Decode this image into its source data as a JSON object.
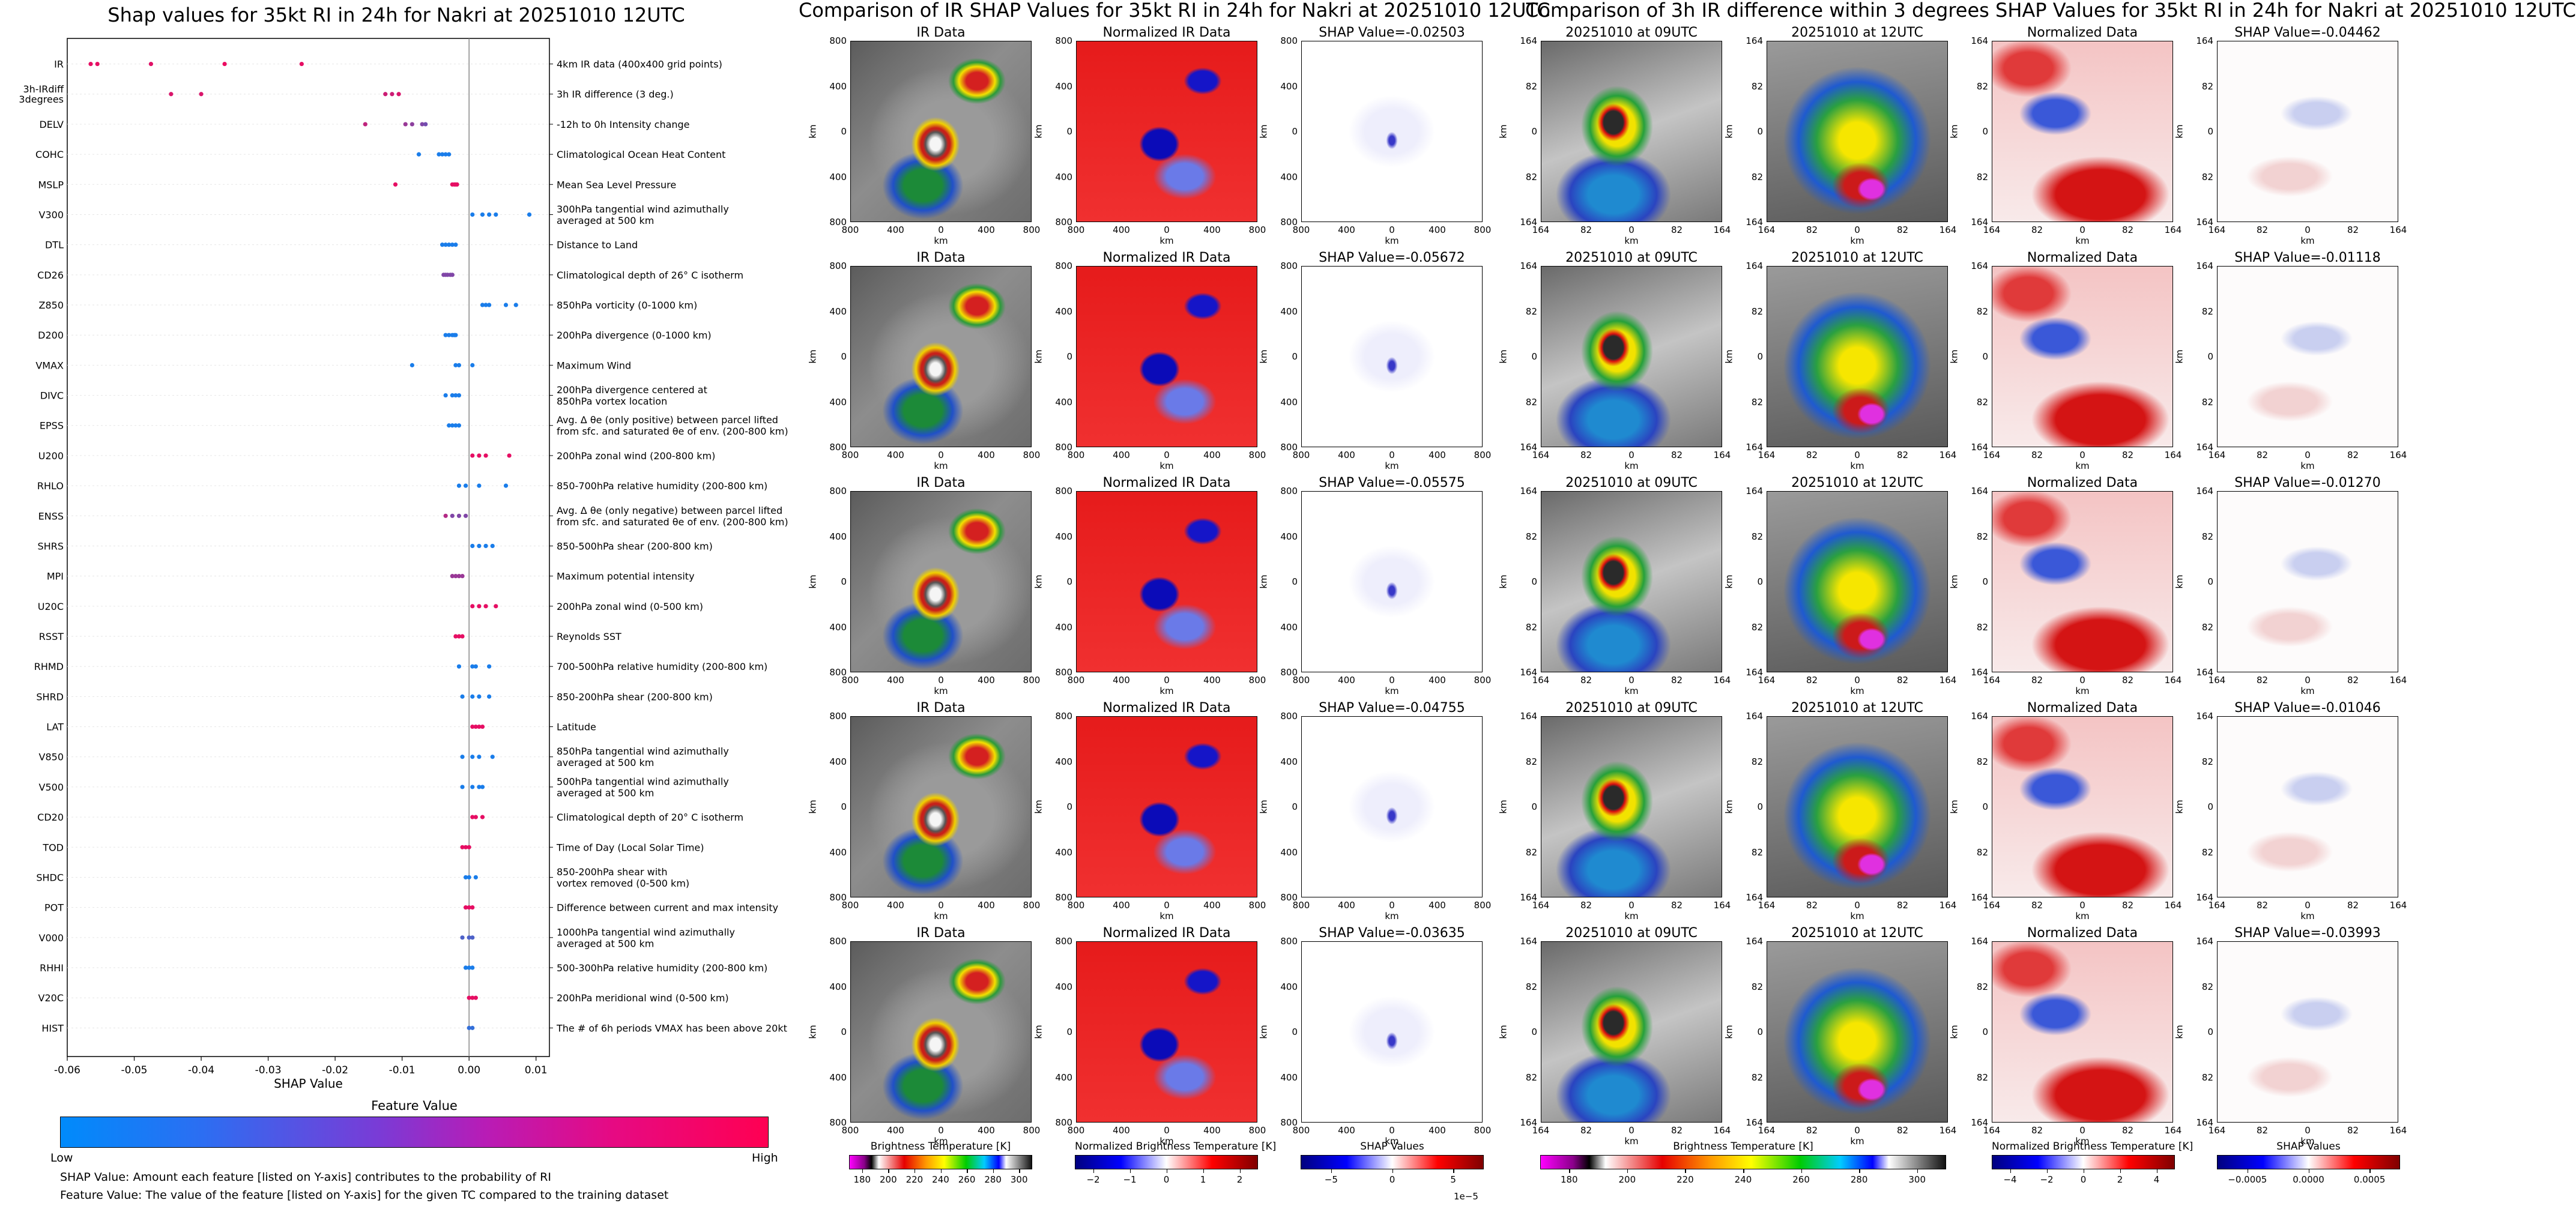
{
  "left_title": "Shap values for 35kt RI in 24h for Nakri at 20251010 12UTC",
  "middle_title": "Comparison of IR SHAP Values for 35kt RI in 24h for Nakri at 20251010 12UTC",
  "right_title": "Comparison of 3h IR difference within 3 degrees SHAP Values for 35kt RI in 24h for Nakri at 20251010 12UTC",
  "chart_data": [
    {
      "type": "scatter",
      "title": "Shap values for 35kt RI in 24h for Nakri at 20251010 12UTC",
      "xlabel": "SHAP Value",
      "xlim": [
        -0.06,
        0.012
      ],
      "xticks": [
        "-0.06",
        "-0.05",
        "-0.04",
        "-0.03",
        "-0.02",
        "-0.01",
        "0.00",
        "0.01"
      ],
      "features": [
        {
          "code": "IR",
          "desc": "4km IR data (400x400 grid points)",
          "points": [
            [
              -0.0565,
              0.9
            ],
            [
              -0.0555,
              0.9
            ],
            [
              -0.0475,
              0.88
            ],
            [
              -0.0365,
              0.92
            ],
            [
              -0.025,
              0.9
            ]
          ]
        },
        {
          "code": "3h-IRdiff\n3degrees",
          "desc": "3h IR difference (3 deg.)",
          "points": [
            [
              -0.0445,
              0.85
            ],
            [
              -0.04,
              0.85
            ],
            [
              -0.0125,
              0.8
            ],
            [
              -0.0115,
              0.8
            ],
            [
              -0.0105,
              0.85
            ]
          ]
        },
        {
          "code": "DELV",
          "desc": "-12h to 0h Intensity change",
          "points": [
            [
              -0.0155,
              0.75
            ],
            [
              -0.0095,
              0.6
            ],
            [
              -0.0085,
              0.55
            ],
            [
              -0.007,
              0.5
            ],
            [
              -0.0065,
              0.45
            ]
          ]
        },
        {
          "code": "COHC",
          "desc": "Climatological Ocean Heat Content",
          "points": [
            [
              -0.0075,
              0.1
            ],
            [
              -0.0045,
              0.1
            ],
            [
              -0.004,
              0.1
            ],
            [
              -0.0035,
              0.1
            ],
            [
              -0.003,
              0.1
            ]
          ]
        },
        {
          "code": "MSLP",
          "desc": "Mean Sea Level Pressure",
          "points": [
            [
              -0.011,
              0.9
            ],
            [
              -0.0025,
              0.9
            ],
            [
              -0.0022,
              0.9
            ],
            [
              -0.002,
              0.9
            ],
            [
              -0.0018,
              0.9
            ]
          ]
        },
        {
          "code": "V300",
          "desc": "300hPa tangential wind azimuthally\naveraged at 500 km",
          "points": [
            [
              0.0005,
              0.1
            ],
            [
              0.002,
              0.1
            ],
            [
              0.003,
              0.1
            ],
            [
              0.004,
              0.1
            ],
            [
              0.009,
              0.1
            ]
          ]
        },
        {
          "code": "DTL",
          "desc": "Distance to Land",
          "points": [
            [
              -0.004,
              0.1
            ],
            [
              -0.0035,
              0.1
            ],
            [
              -0.003,
              0.1
            ],
            [
              -0.0025,
              0.1
            ],
            [
              -0.002,
              0.1
            ]
          ]
        },
        {
          "code": "CD26",
          "desc": "Climatological depth of 26° C isotherm",
          "points": [
            [
              -0.0038,
              0.5
            ],
            [
              -0.0035,
              0.5
            ],
            [
              -0.0032,
              0.5
            ],
            [
              -0.0028,
              0.5
            ],
            [
              -0.0025,
              0.5
            ]
          ]
        },
        {
          "code": "Z850",
          "desc": "850hPa vorticity (0-1000 km)",
          "points": [
            [
              0.002,
              0.1
            ],
            [
              0.0025,
              0.1
            ],
            [
              0.003,
              0.1
            ],
            [
              0.0055,
              0.1
            ],
            [
              0.007,
              0.1
            ]
          ]
        },
        {
          "code": "D200",
          "desc": "200hPa divergence (0-1000 km)",
          "points": [
            [
              -0.0035,
              0.1
            ],
            [
              -0.003,
              0.1
            ],
            [
              -0.0025,
              0.1
            ],
            [
              -0.0022,
              0.1
            ],
            [
              -0.002,
              0.1
            ]
          ]
        },
        {
          "code": "VMAX",
          "desc": "Maximum Wind",
          "points": [
            [
              -0.0085,
              0.1
            ],
            [
              -0.002,
              0.1
            ],
            [
              -0.0015,
              0.1
            ],
            [
              0.0005,
              0.1
            ]
          ]
        },
        {
          "code": "DIVC",
          "desc": "200hPa divergence centered at\n850hPa vortex location",
          "points": [
            [
              -0.0035,
              0.1
            ],
            [
              -0.0025,
              0.1
            ],
            [
              -0.002,
              0.1
            ],
            [
              -0.0015,
              0.1
            ]
          ]
        },
        {
          "code": "EPSS",
          "desc": "Avg. Δ θe (only positive) between parcel lifted\nfrom sfc. and saturated θe of env. (200-800 km)",
          "points": [
            [
              -0.003,
              0.1
            ],
            [
              -0.0025,
              0.1
            ],
            [
              -0.002,
              0.1
            ],
            [
              -0.0015,
              0.1
            ]
          ]
        },
        {
          "code": "U200",
          "desc": "200hPa zonal wind (200-800 km)",
          "points": [
            [
              0.0005,
              0.9
            ],
            [
              0.0015,
              0.9
            ],
            [
              0.0025,
              0.9
            ],
            [
              0.006,
              0.9
            ]
          ]
        },
        {
          "code": "RHLO",
          "desc": "850-700hPa relative humidity (200-800 km)",
          "points": [
            [
              -0.0015,
              0.1
            ],
            [
              -0.0005,
              0.1
            ],
            [
              0.0015,
              0.1
            ],
            [
              0.0055,
              0.1
            ]
          ]
        },
        {
          "code": "ENSS",
          "desc": "Avg. Δ θe (only negative) between parcel lifted\nfrom sfc. and saturated θe of env. (200-800 km)",
          "points": [
            [
              -0.0035,
              0.7
            ],
            [
              -0.0025,
              0.5
            ],
            [
              -0.0015,
              0.5
            ],
            [
              -0.0005,
              0.5
            ]
          ]
        },
        {
          "code": "SHRS",
          "desc": "850-500hPa shear (200-800 km)",
          "points": [
            [
              0.0005,
              0.1
            ],
            [
              0.0015,
              0.1
            ],
            [
              0.0025,
              0.1
            ],
            [
              0.0035,
              0.1
            ]
          ]
        },
        {
          "code": "MPI",
          "desc": "Maximum potential intensity",
          "points": [
            [
              -0.0025,
              0.6
            ],
            [
              -0.002,
              0.6
            ],
            [
              -0.0015,
              0.6
            ],
            [
              -0.001,
              0.6
            ]
          ]
        },
        {
          "code": "U20C",
          "desc": "200hPa zonal wind (0-500 km)",
          "points": [
            [
              0.0005,
              0.9
            ],
            [
              0.0015,
              0.9
            ],
            [
              0.0025,
              0.9
            ],
            [
              0.004,
              0.9
            ]
          ]
        },
        {
          "code": "RSST",
          "desc": "Reynolds SST",
          "points": [
            [
              -0.002,
              0.9
            ],
            [
              -0.0015,
              0.9
            ],
            [
              -0.001,
              0.9
            ]
          ]
        },
        {
          "code": "RHMD",
          "desc": "700-500hPa relative humidity (200-800 km)",
          "points": [
            [
              -0.0015,
              0.1
            ],
            [
              0.0005,
              0.1
            ],
            [
              0.001,
              0.1
            ],
            [
              0.003,
              0.1
            ]
          ]
        },
        {
          "code": "SHRD",
          "desc": "850-200hPa shear (200-800 km)",
          "points": [
            [
              -0.001,
              0.1
            ],
            [
              0.0005,
              0.1
            ],
            [
              0.0015,
              0.1
            ],
            [
              0.003,
              0.1
            ]
          ]
        },
        {
          "code": "LAT",
          "desc": "Latitude",
          "points": [
            [
              0.0005,
              0.9
            ],
            [
              0.001,
              0.9
            ],
            [
              0.0015,
              0.9
            ],
            [
              0.002,
              0.9
            ]
          ]
        },
        {
          "code": "V850",
          "desc": "850hPa tangential wind azimuthally\naveraged at 500 km",
          "points": [
            [
              -0.001,
              0.1
            ],
            [
              0.0005,
              0.1
            ],
            [
              0.0015,
              0.1
            ],
            [
              0.0035,
              0.1
            ]
          ]
        },
        {
          "code": "V500",
          "desc": "500hPa tangential wind azimuthally\naveraged at 500 km",
          "points": [
            [
              -0.001,
              0.1
            ],
            [
              0.0005,
              0.1
            ],
            [
              0.0015,
              0.1
            ],
            [
              0.002,
              0.1
            ]
          ]
        },
        {
          "code": "CD20",
          "desc": "Climatological depth of 20° C isotherm",
          "points": [
            [
              0.0005,
              0.9
            ],
            [
              0.001,
              0.9
            ],
            [
              0.002,
              0.9
            ]
          ]
        },
        {
          "code": "TOD",
          "desc": "Time of Day (Local Solar Time)",
          "points": [
            [
              -0.001,
              0.9
            ],
            [
              -0.0005,
              0.9
            ],
            [
              0.0,
              0.9
            ]
          ]
        },
        {
          "code": "SHDC",
          "desc": "850-200hPa shear with\nvortex removed (0-500 km)",
          "points": [
            [
              -0.0005,
              0.1
            ],
            [
              0.0,
              0.1
            ],
            [
              0.001,
              0.1
            ]
          ]
        },
        {
          "code": "POT",
          "desc": "Difference between current and max intensity",
          "points": [
            [
              -0.0005,
              0.9
            ],
            [
              0.0,
              0.9
            ],
            [
              0.0005,
              0.9
            ]
          ]
        },
        {
          "code": "V000",
          "desc": "1000hPa tangential wind azimuthally\naveraged at 500 km",
          "points": [
            [
              -0.001,
              0.3
            ],
            [
              0.0,
              0.3
            ],
            [
              0.0005,
              0.3
            ]
          ]
        },
        {
          "code": "RHHI",
          "desc": "500-300hPa relative humidity (200-800 km)",
          "points": [
            [
              -0.0005,
              0.1
            ],
            [
              0.0,
              0.1
            ],
            [
              0.0005,
              0.1
            ]
          ]
        },
        {
          "code": "V20C",
          "desc": "200hPa meridional wind (0-500 km)",
          "points": [
            [
              0.0,
              0.9
            ],
            [
              0.0005,
              0.9
            ],
            [
              0.001,
              0.9
            ]
          ]
        },
        {
          "code": "HIST",
          "desc": "The # of 6h periods VMAX has been above 20kt",
          "points": [
            [
              0.0,
              0.2
            ],
            [
              0.0005,
              0.2
            ]
          ]
        }
      ]
    }
  ],
  "feature_colorbar": {
    "title": "Feature Value",
    "low": "Low",
    "high": "High"
  },
  "notes": [
    "SHAP Value: Amount each feature [listed on Y-axis] contributes to the probability of RI",
    "Feature Value: The value of the feature [listed on Y-axis] for the given TC compared to the training dataset"
  ],
  "middle_panels": {
    "column_titles": [
      "IR Data",
      "Normalized IR Data"
    ],
    "shap_titles": [
      "SHAP Value=-0.02503",
      "SHAP Value=-0.05672",
      "SHAP Value=-0.05575",
      "SHAP Value=-0.04755",
      "SHAP Value=-0.03635"
    ],
    "axis_label": "km",
    "x_ticks": [
      "800",
      "400",
      "0",
      "400",
      "800"
    ],
    "y_ticks": [
      "800",
      "400",
      "0",
      "400",
      "800"
    ]
  },
  "right_panels": {
    "column_titles": [
      "20251010 at 09UTC",
      "20251010 at 12UTC",
      "Normalized Data"
    ],
    "shap_titles": [
      "SHAP Value=-0.04462",
      "SHAP Value=-0.01118",
      "SHAP Value=-0.01270",
      "SHAP Value=-0.01046",
      "SHAP Value=-0.03993"
    ],
    "axis_label": "km",
    "x_ticks": [
      "164",
      "82",
      "0",
      "82",
      "164"
    ],
    "y_ticks": [
      "164",
      "82",
      "0",
      "82",
      "164"
    ]
  },
  "colorbars": [
    {
      "label": "Brightness Temperature [K]",
      "ticks": [
        "180",
        "200",
        "220",
        "240",
        "260",
        "280",
        "300"
      ]
    },
    {
      "label": "Normalized Brightness Temperature [K]",
      "ticks": [
        "−2",
        "−1",
        "0",
        "1",
        "2"
      ]
    },
    {
      "label": "SHAP Values",
      "ticks": [
        "−5",
        "0",
        "5"
      ],
      "offset": "1e−5"
    },
    {
      "label": "Brightness Temperature [K]",
      "ticks": [
        "180",
        "200",
        "220",
        "240",
        "260",
        "280",
        "300"
      ]
    },
    {
      "label": "Normalized Brightness Temperature [K]",
      "ticks": [
        "−4",
        "−2",
        "0",
        "2",
        "4"
      ]
    },
    {
      "label": "SHAP Values",
      "ticks": [
        "−0.0005",
        "0.0000",
        "0.0005"
      ]
    }
  ],
  "colors": {
    "feature_low": "#008bfb",
    "feature_high": "#ff0052"
  }
}
